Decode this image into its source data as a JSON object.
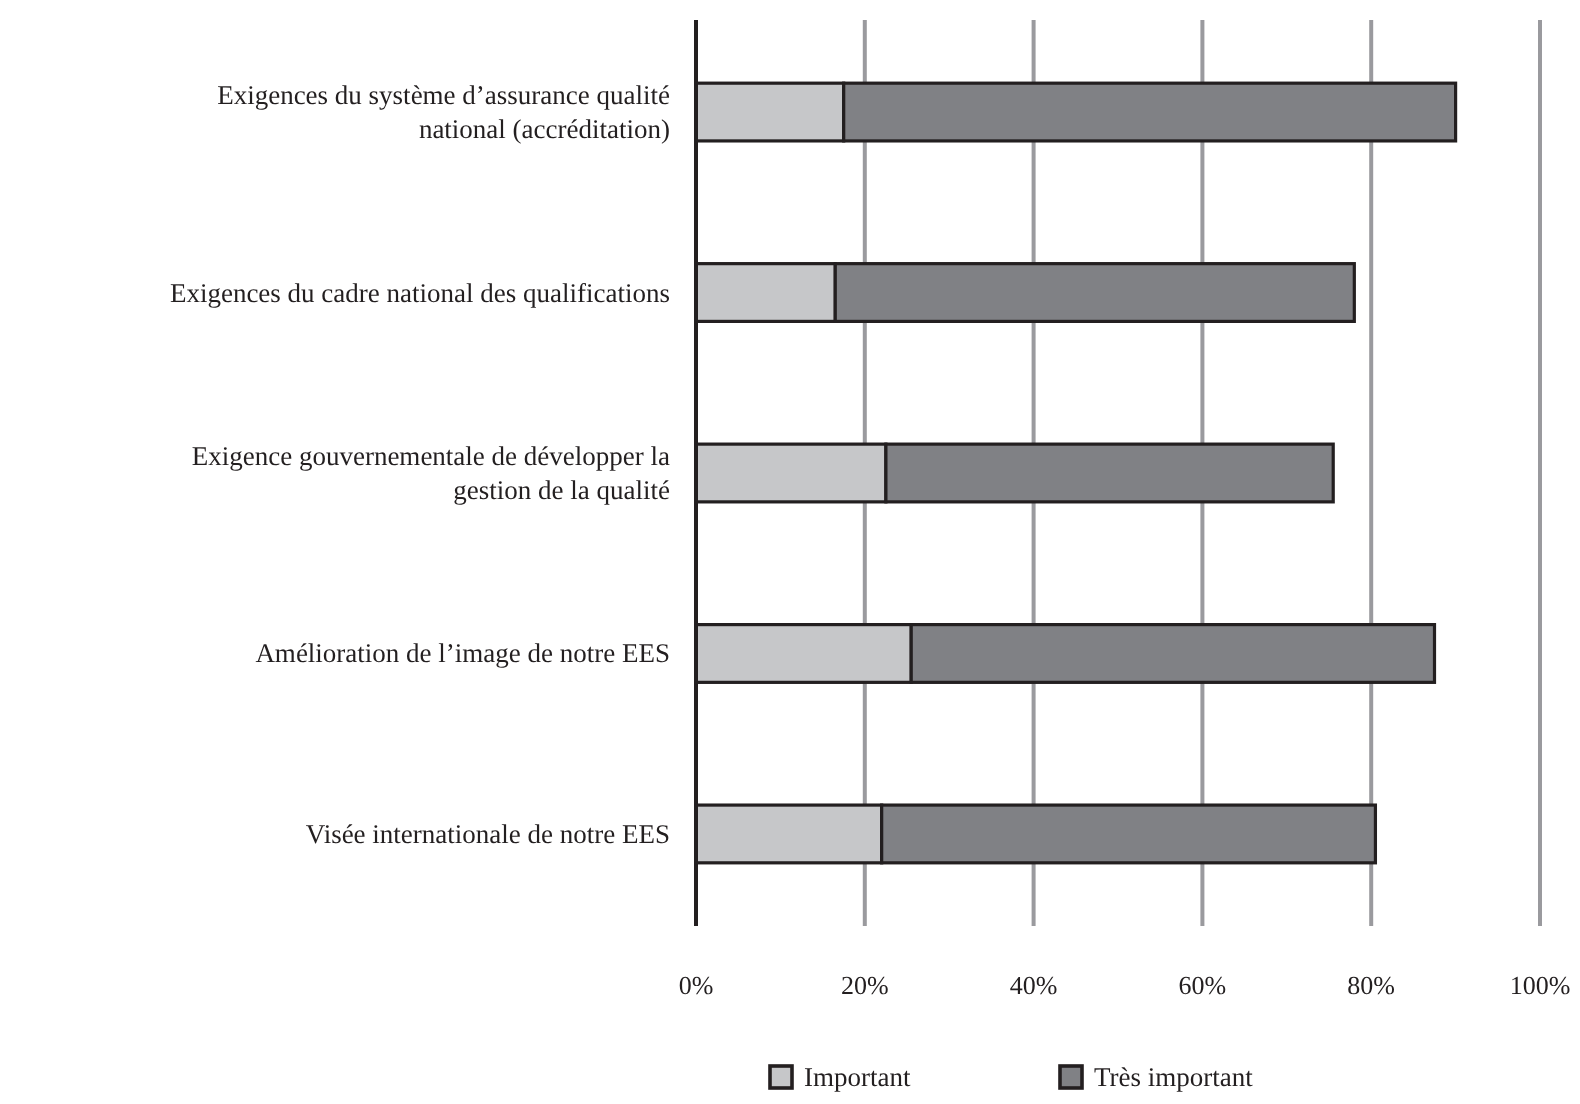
{
  "chart_data": {
    "type": "bar",
    "orientation": "horizontal",
    "stacked": true,
    "categories": [
      "Exigences du système d’assurance qualité national (accréditation)",
      "Exigences du cadre national des qualifications",
      "Exigence gouvernementale de développer la gestion de la qualité",
      "Amélioration de l’image de notre EES",
      "Visée internationale de notre EES"
    ],
    "series": [
      {
        "name": "Important",
        "color": "#c6c7c9",
        "values": [
          17.5,
          16.5,
          22.5,
          25.5,
          22
        ]
      },
      {
        "name": "Très important",
        "color": "#808185",
        "values": [
          72.5,
          61.5,
          53,
          62,
          58.5
        ]
      }
    ],
    "xlim": [
      0,
      100
    ],
    "xticks": [
      {
        "value": 0,
        "label": "0%"
      },
      {
        "value": 20,
        "label": "20%"
      },
      {
        "value": 40,
        "label": "40%"
      },
      {
        "value": 60,
        "label": "60%"
      },
      {
        "value": 80,
        "label": "80%"
      },
      {
        "value": 100,
        "label": "100%"
      }
    ],
    "grid": "x",
    "legend": "bottom"
  }
}
